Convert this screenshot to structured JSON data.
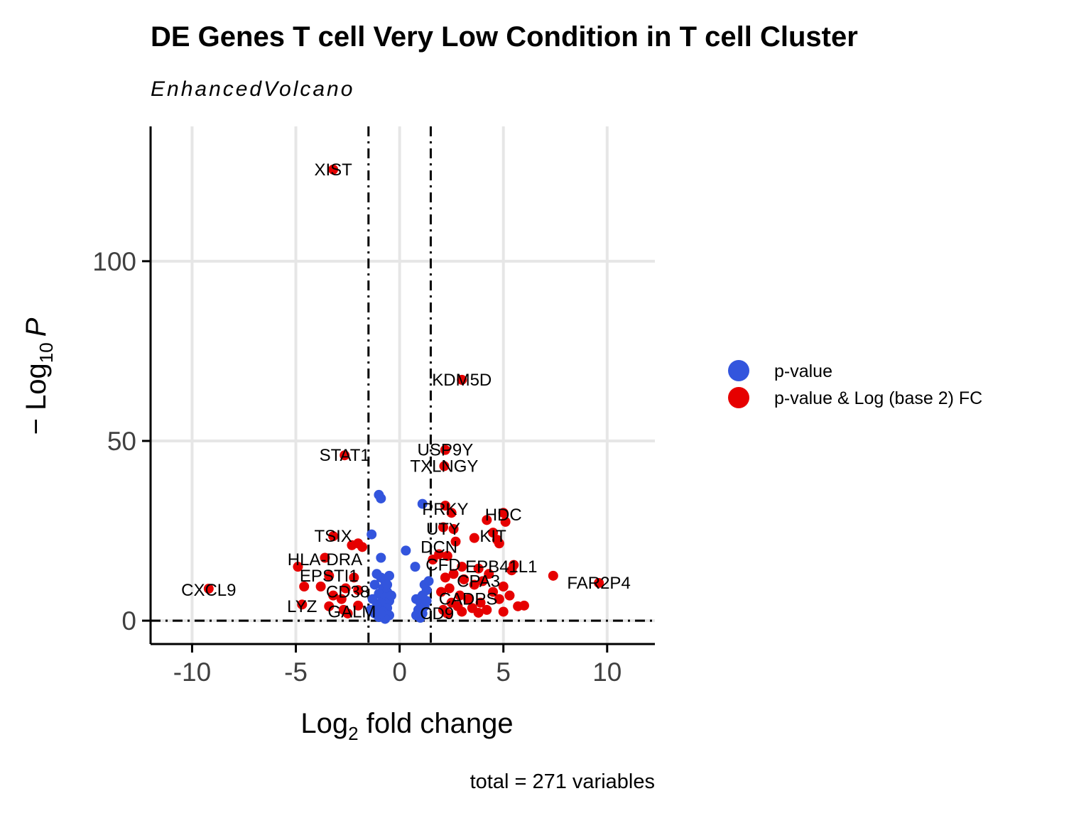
{
  "chart_data": {
    "type": "scatter",
    "title": "DE Genes T cell Very Low Condition in T cell Cluster",
    "subtitle": "EnhancedVolcano",
    "xlabel": {
      "main": "Log",
      "sub": "2",
      "rest": " fold change"
    },
    "ylabel": {
      "prefix": "− Log",
      "sub": "10",
      "italic": "P"
    },
    "caption": "total = 271 variables",
    "xlim": [
      -12,
      12.3
    ],
    "ylim": [
      -6.5,
      137.5
    ],
    "xticks": [
      -10,
      -5,
      0,
      5,
      10
    ],
    "xtick_labels": [
      "-10",
      "-5",
      "0",
      "5",
      "10"
    ],
    "yticks": [
      0,
      50,
      100
    ],
    "ytick_labels": [
      "0",
      "50",
      "100"
    ],
    "fc_cutoff": 1.5,
    "p_cutoff_log": 0,
    "colors": {
      "pvalue": "#3355dd",
      "pvalue_fc": "#e60000",
      "grid": "#e6e6e6"
    },
    "legend": {
      "position": "right",
      "entries": [
        {
          "label": "p-value",
          "color": "#3355dd"
        },
        {
          "label": "p-value & Log (base 2) FC",
          "color": "#e60000"
        }
      ]
    },
    "series": [
      {
        "name": "p-value",
        "color": "#3355dd",
        "points": [
          [
            -1.0,
            35
          ],
          [
            -0.9,
            34
          ],
          [
            -1.35,
            24
          ],
          [
            -0.9,
            17.5
          ],
          [
            0.3,
            19.5
          ],
          [
            0.75,
            15
          ],
          [
            1.1,
            32.5
          ],
          [
            -1.1,
            13
          ],
          [
            -0.9,
            12
          ],
          [
            -0.7,
            11
          ],
          [
            -0.5,
            12.5
          ],
          [
            -1.2,
            10
          ],
          [
            -0.8,
            9
          ],
          [
            -0.6,
            8
          ],
          [
            -1.0,
            7.5
          ],
          [
            -0.7,
            6.5
          ],
          [
            -0.5,
            5.5
          ],
          [
            -1.3,
            6
          ],
          [
            -0.9,
            5
          ],
          [
            -1.1,
            4
          ],
          [
            -0.6,
            3.5
          ],
          [
            -0.8,
            2.5
          ],
          [
            -1.2,
            2
          ],
          [
            -0.5,
            1.5
          ],
          [
            -1.0,
            1
          ],
          [
            -0.7,
            0.5
          ],
          [
            -0.4,
            7
          ],
          [
            -1.4,
            3
          ],
          [
            -0.6,
            10
          ],
          [
            -0.9,
            2
          ],
          [
            0.8,
            6
          ],
          [
            1.0,
            5
          ],
          [
            1.2,
            4
          ],
          [
            0.9,
            3
          ],
          [
            1.1,
            2
          ],
          [
            1.3,
            8.5
          ],
          [
            1.2,
            10
          ],
          [
            1.4,
            11
          ],
          [
            0.8,
            1.5
          ],
          [
            1.0,
            0.8
          ],
          [
            1.3,
            5.5
          ],
          [
            1.1,
            7
          ]
        ]
      },
      {
        "name": "p-value & Log (base 2) FC",
        "color": "#e60000",
        "points": [
          [
            -3.2,
            125.5
          ],
          [
            3.0,
            67
          ],
          [
            2.2,
            47.5
          ],
          [
            -2.65,
            46
          ],
          [
            2.15,
            43
          ],
          [
            2.2,
            32
          ],
          [
            5.0,
            30
          ],
          [
            2.5,
            30
          ],
          [
            4.2,
            28
          ],
          [
            5.1,
            27.5
          ],
          [
            2.1,
            26
          ],
          [
            2.6,
            25.5
          ],
          [
            4.5,
            24.5
          ],
          [
            -3.2,
            23.5
          ],
          [
            3.6,
            23
          ],
          [
            4.7,
            22.5
          ],
          [
            -2.0,
            21.5
          ],
          [
            2.7,
            22
          ],
          [
            -1.8,
            20.5
          ],
          [
            -2.3,
            21
          ],
          [
            4.8,
            21.5
          ],
          [
            1.9,
            18.5
          ],
          [
            1.6,
            17
          ],
          [
            -3.6,
            17.5
          ],
          [
            -4.9,
            15
          ],
          [
            2.3,
            18
          ],
          [
            3.0,
            15
          ],
          [
            5.5,
            15.5
          ],
          [
            5.4,
            14
          ],
          [
            3.8,
            14.5
          ],
          [
            4.3,
            13
          ],
          [
            7.4,
            12.5
          ],
          [
            9.6,
            10.5
          ],
          [
            -9.2,
            8.9
          ],
          [
            -3.4,
            12.5
          ],
          [
            -2.2,
            12
          ],
          [
            -4.6,
            9.5
          ],
          [
            -3.8,
            9.5
          ],
          [
            -2.6,
            9
          ],
          [
            -2.0,
            8.5
          ],
          [
            -3.2,
            7
          ],
          [
            -2.8,
            6
          ],
          [
            -4.7,
            4.5
          ],
          [
            -3.4,
            4
          ],
          [
            -2.7,
            3
          ],
          [
            -2.5,
            2
          ],
          [
            -2.0,
            4.2
          ],
          [
            3.1,
            11.5
          ],
          [
            3.6,
            10
          ],
          [
            2.4,
            9
          ],
          [
            2.0,
            8
          ],
          [
            4.0,
            11
          ],
          [
            5.0,
            9.5
          ],
          [
            4.5,
            8
          ],
          [
            5.3,
            7
          ],
          [
            3.3,
            6
          ],
          [
            2.5,
            5
          ],
          [
            2.8,
            4
          ],
          [
            3.5,
            3.5
          ],
          [
            4.2,
            3
          ],
          [
            5.7,
            4
          ],
          [
            6.0,
            4.2
          ],
          [
            5.0,
            2.5
          ],
          [
            3.8,
            2.2
          ],
          [
            2.2,
            12
          ],
          [
            2.6,
            13
          ],
          [
            2.9,
            7
          ],
          [
            3.9,
            5
          ],
          [
            4.8,
            6
          ],
          [
            2.1,
            3
          ],
          [
            2.3,
            2
          ],
          [
            3.0,
            2.5
          ]
        ]
      }
    ],
    "labels": [
      {
        "text": "XIST",
        "x": -3.2,
        "y": 125.5,
        "dx": 0,
        "dy": 0
      },
      {
        "text": "KDM5D",
        "x": 3.0,
        "y": 67,
        "dx": 0,
        "dy": 0
      },
      {
        "text": "STAT1",
        "x": -2.65,
        "y": 46,
        "dx": 0,
        "dy": 0
      },
      {
        "text": "USP9Y",
        "x": 2.2,
        "y": 47.5,
        "dx": 0,
        "dy": 0
      },
      {
        "text": "TXLNGY",
        "x": 2.15,
        "y": 43,
        "dx": 0,
        "dy": 0
      },
      {
        "text": "PRKY",
        "x": 2.2,
        "y": 31,
        "dx": 0,
        "dy": 0
      },
      {
        "text": "HDC",
        "x": 5.0,
        "y": 29.5,
        "dx": 0,
        "dy": 0
      },
      {
        "text": "UTY",
        "x": 2.1,
        "y": 25.5,
        "dx": 0,
        "dy": 0
      },
      {
        "text": "TSIX",
        "x": -3.2,
        "y": 23.5,
        "dx": 0,
        "dy": 0
      },
      {
        "text": "KIT",
        "x": 4.5,
        "y": 23.5,
        "dx": 0,
        "dy": 0
      },
      {
        "text": "DCN",
        "x": 1.9,
        "y": 20.5,
        "dx": 0,
        "dy": 0
      },
      {
        "text": "HLA-DRA",
        "x": -3.6,
        "y": 17,
        "dx": 0,
        "dy": 0
      },
      {
        "text": "CFD",
        "x": 2.1,
        "y": 15.5,
        "dx": 0,
        "dy": 0
      },
      {
        "text": "EPB41L1",
        "x": 4.9,
        "y": 15,
        "dx": 0,
        "dy": 0
      },
      {
        "text": "EPSTI1",
        "x": -3.4,
        "y": 12.5,
        "dx": 0,
        "dy": 0
      },
      {
        "text": "FAR2P4",
        "x": 9.6,
        "y": 10.5,
        "dx": 0,
        "dy": 0
      },
      {
        "text": "CPA3",
        "x": 3.8,
        "y": 11,
        "dx": 0,
        "dy": 0
      },
      {
        "text": "CXCL9",
        "x": -9.2,
        "y": 8.5,
        "dx": 0,
        "dy": 0
      },
      {
        "text": "CD38",
        "x": -2.5,
        "y": 8,
        "dx": 0,
        "dy": 0
      },
      {
        "text": "CADPS",
        "x": 3.3,
        "y": 6,
        "dx": 0,
        "dy": 0
      },
      {
        "text": "LYZ",
        "x": -4.7,
        "y": 4,
        "dx": 0,
        "dy": 0
      },
      {
        "text": "GALM",
        "x": -2.3,
        "y": 2.5,
        "dx": 0,
        "dy": 0
      },
      {
        "text": "CD9",
        "x": 1.8,
        "y": 2,
        "dx": 0,
        "dy": 0
      }
    ]
  }
}
